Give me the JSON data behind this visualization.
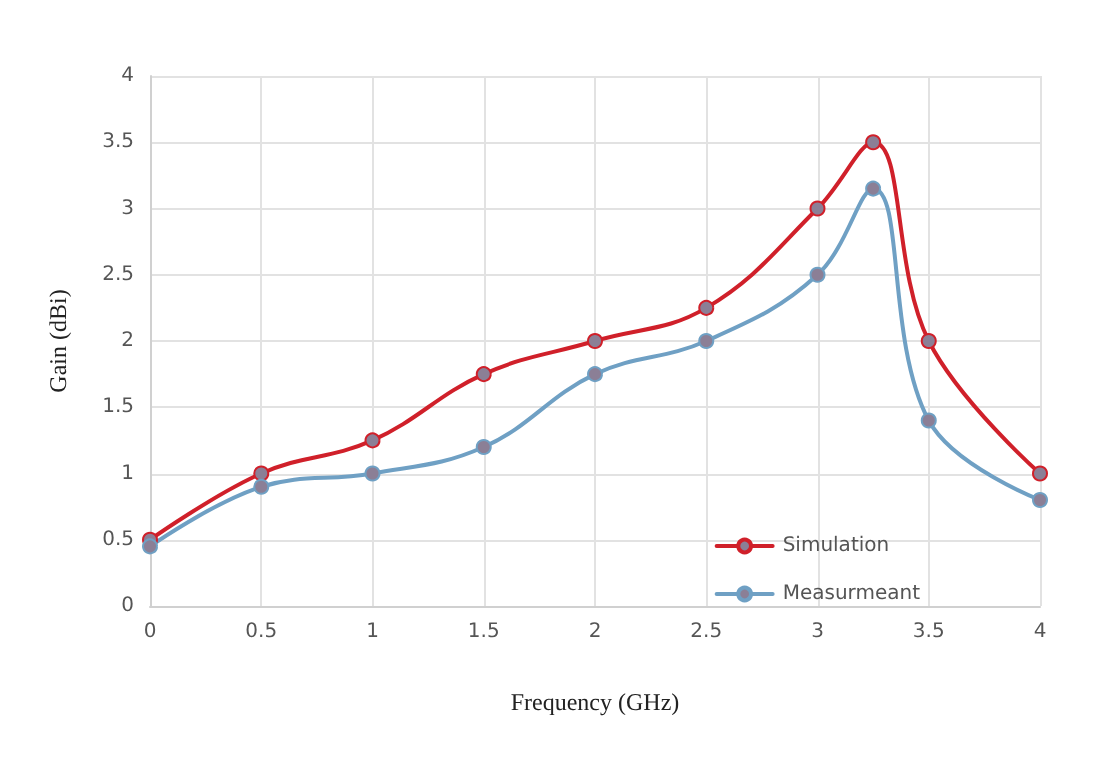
{
  "chart_data": {
    "type": "line",
    "xlabel": "Frequency (GHz)",
    "ylabel": "Gain (dBi)",
    "x": [
      0,
      0.5,
      1,
      1.5,
      2,
      2.5,
      3,
      3.25,
      3.5,
      4
    ],
    "series": [
      {
        "name": "Simulation",
        "color": "#d0202a",
        "values": [
          0.5,
          1,
          1.25,
          1.75,
          2,
          2.25,
          3,
          3.5,
          2,
          1
        ]
      },
      {
        "name": "Measurmeant",
        "color": "#6fa0c4",
        "values": [
          0.45,
          0.9,
          1,
          1.2,
          1.75,
          2,
          2.5,
          3.15,
          1.4,
          0.8
        ]
      }
    ],
    "xlim": [
      0,
      4
    ],
    "xticks": [
      0,
      0.5,
      1,
      1.5,
      2,
      2.5,
      3,
      3.5,
      4
    ],
    "ylim": [
      0,
      4
    ],
    "yticks": [
      0,
      0.5,
      1,
      1.5,
      2,
      2.5,
      3,
      3.5,
      4
    ],
    "grid": true,
    "legend": "bottom right",
    "marker": "circle",
    "line_style": "solid"
  }
}
